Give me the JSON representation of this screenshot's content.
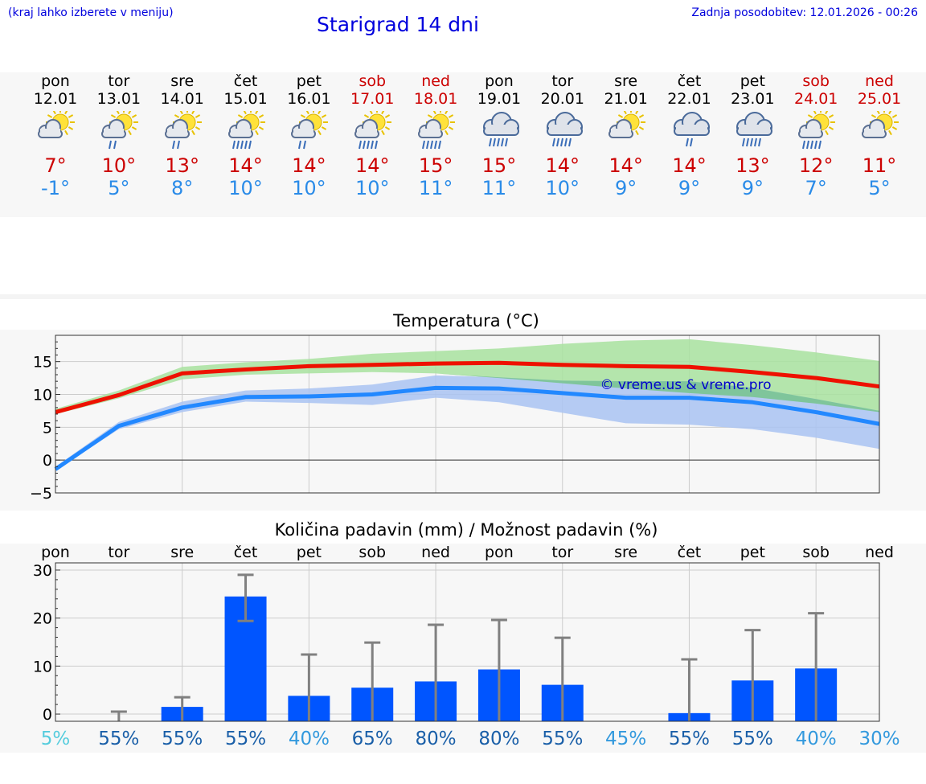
{
  "header": {
    "menu_hint": "(kraj lahko izberete v meniju)",
    "title": "Starigrad 14 dni",
    "last_update": "Zadnja posodobitev: 12.01.2026 - 00:26"
  },
  "colors": {
    "link_blue": "#0000dd",
    "weekend_red": "#cc0000",
    "tmax_red": "#cc0000",
    "tmin_blue": "#2a8be8",
    "max_line": "#ee1100",
    "min_line": "#2288ff",
    "max_band": "#a8e29f",
    "min_band": "#a9c3f2",
    "overlap_band": "#7fc59b",
    "bar_blue": "#0055ff",
    "errorbar_gray": "#808080"
  },
  "forecast": {
    "days": [
      {
        "name": "pon",
        "date": "12.01",
        "weekend": false,
        "icon": "sun-cloud-icon",
        "tmax": "7°",
        "tmin": "-1°"
      },
      {
        "name": "tor",
        "date": "13.01",
        "weekend": false,
        "icon": "sun-cloud-rain-icon",
        "tmax": "10°",
        "tmin": "5°"
      },
      {
        "name": "sre",
        "date": "14.01",
        "weekend": false,
        "icon": "sun-cloud-rain-icon",
        "tmax": "13°",
        "tmin": "8°"
      },
      {
        "name": "čet",
        "date": "15.01",
        "weekend": false,
        "icon": "sun-cloud-heavy-rain-icon",
        "tmax": "14°",
        "tmin": "10°"
      },
      {
        "name": "pet",
        "date": "16.01",
        "weekend": false,
        "icon": "sun-cloud-rain-icon",
        "tmax": "14°",
        "tmin": "10°"
      },
      {
        "name": "sob",
        "date": "17.01",
        "weekend": true,
        "icon": "sun-cloud-heavy-rain-icon",
        "tmax": "14°",
        "tmin": "10°"
      },
      {
        "name": "ned",
        "date": "18.01",
        "weekend": true,
        "icon": "sun-cloud-heavy-rain-icon",
        "tmax": "15°",
        "tmin": "11°"
      },
      {
        "name": "pon",
        "date": "19.01",
        "weekend": false,
        "icon": "cloud-heavy-rain-icon",
        "tmax": "15°",
        "tmin": "11°"
      },
      {
        "name": "tor",
        "date": "20.01",
        "weekend": false,
        "icon": "cloud-heavy-rain-icon",
        "tmax": "14°",
        "tmin": "10°"
      },
      {
        "name": "sre",
        "date": "21.01",
        "weekend": false,
        "icon": "sun-cloud-icon",
        "tmax": "14°",
        "tmin": "9°"
      },
      {
        "name": "čet",
        "date": "22.01",
        "weekend": false,
        "icon": "cloud-rain-icon",
        "tmax": "14°",
        "tmin": "9°"
      },
      {
        "name": "pet",
        "date": "23.01",
        "weekend": false,
        "icon": "cloud-heavy-rain-icon",
        "tmax": "13°",
        "tmin": "9°"
      },
      {
        "name": "sob",
        "date": "24.01",
        "weekend": true,
        "icon": "sun-cloud-heavy-rain-icon",
        "tmax": "12°",
        "tmin": "7°"
      },
      {
        "name": "ned",
        "date": "25.01",
        "weekend": true,
        "icon": "sun-cloud-icon",
        "tmax": "11°",
        "tmin": "5°"
      }
    ]
  },
  "chart_data": [
    {
      "type": "line",
      "title": "Temperatura (°C)",
      "xlabel": "",
      "ylabel": "",
      "ylim": [
        -5,
        19
      ],
      "yticks": [
        -5,
        0,
        5,
        10,
        15
      ],
      "yticks_labels": [
        "−5",
        "0",
        "5",
        "10",
        "15"
      ],
      "grid": true,
      "watermark": "© vreme.us & vreme.pro",
      "x": [
        0,
        1,
        2,
        3,
        4,
        5,
        6,
        7,
        8,
        9,
        10,
        11,
        12,
        13
      ],
      "series": [
        {
          "name": "max",
          "values": [
            7.3,
            9.9,
            13.2,
            13.8,
            14.3,
            14.5,
            14.7,
            14.8,
            14.5,
            14.3,
            14.2,
            13.4,
            12.5,
            11.2
          ],
          "band_low": [
            7.0,
            9.4,
            12.3,
            13.0,
            13.2,
            13.4,
            13.2,
            12.5,
            11.7,
            10.9,
            10.2,
            9.6,
            8.6,
            7.3
          ],
          "band_high": [
            7.8,
            10.6,
            14.2,
            14.9,
            15.4,
            16.2,
            16.6,
            17.0,
            17.7,
            18.2,
            18.4,
            17.5,
            16.4,
            15.1
          ]
        },
        {
          "name": "min",
          "values": [
            -1.4,
            5.2,
            8.0,
            9.6,
            9.7,
            10.0,
            11.0,
            10.9,
            10.2,
            9.5,
            9.5,
            8.8,
            7.3,
            5.5
          ],
          "band_low": [
            -1.6,
            4.7,
            7.3,
            8.9,
            8.7,
            8.4,
            9.5,
            8.8,
            7.2,
            5.6,
            5.4,
            4.7,
            3.4,
            1.7
          ],
          "band_high": [
            -1.0,
            5.8,
            8.9,
            10.6,
            10.9,
            11.5,
            12.9,
            12.6,
            12.1,
            12.0,
            12.0,
            11.0,
            9.3,
            7.5
          ]
        }
      ]
    },
    {
      "type": "bar",
      "title": "Količina padavin (mm) / Možnost padavin (%)",
      "xlabel": "",
      "ylabel": "",
      "ylim": [
        -1.5,
        31.5
      ],
      "yticks": [
        0,
        10,
        20,
        30
      ],
      "categories": [
        "pon",
        "tor",
        "sre",
        "čet",
        "pet",
        "sob",
        "ned",
        "pon",
        "tor",
        "sre",
        "čet",
        "pet",
        "sob",
        "ned"
      ],
      "values": [
        0,
        0,
        1.5,
        24.5,
        3.8,
        5.5,
        6.8,
        9.3,
        6.1,
        0,
        0.2,
        7.0,
        9.5,
        0
      ],
      "error_high": [
        0,
        0.5,
        3.5,
        29.0,
        12.4,
        14.9,
        18.6,
        19.6,
        15.9,
        0,
        11.4,
        17.5,
        21.0,
        0
      ],
      "error_low": [
        0,
        0,
        0,
        19.4,
        0,
        0,
        0,
        0,
        0,
        0,
        0,
        0,
        0,
        0
      ],
      "probability": [
        "5%",
        "55%",
        "55%",
        "55%",
        "40%",
        "65%",
        "80%",
        "80%",
        "55%",
        "45%",
        "55%",
        "55%",
        "40%",
        "30%"
      ],
      "probability_colors": [
        "#55ccdd",
        "#1a5fa8",
        "#1a5fa8",
        "#1a5fa8",
        "#3399dd",
        "#1a5fa8",
        "#1a5fa8",
        "#1a5fa8",
        "#1a5fa8",
        "#3399dd",
        "#1a5fa8",
        "#1a5fa8",
        "#3399dd",
        "#3399dd"
      ]
    }
  ]
}
